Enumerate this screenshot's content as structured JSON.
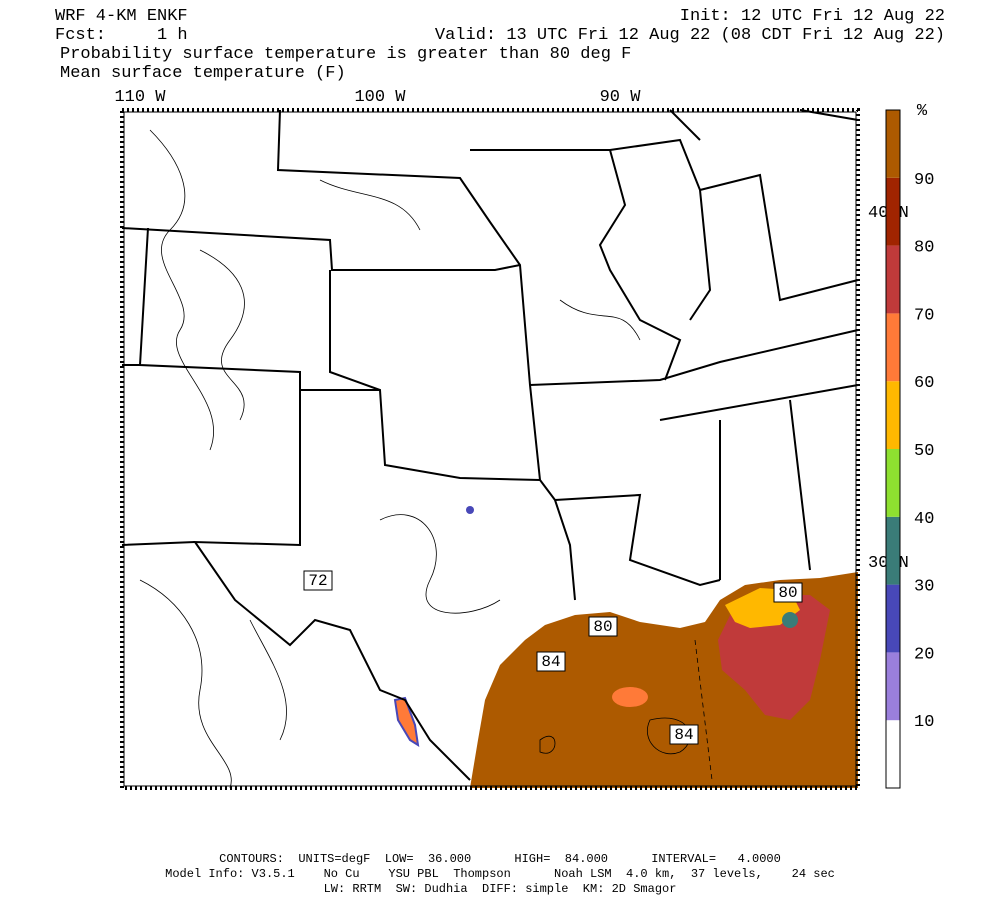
{
  "header": {
    "title": "WRF 4-KM ENKF",
    "init": "Init: 12 UTC Fri 12 Aug 22",
    "forecast": "Fcst:     1 h",
    "valid": "Valid: 13 UTC Fri 12 Aug 22 (08 CDT Fri 12 Aug 22)",
    "field": "Probability surface temperature is greater than 80 deg F",
    "contour_field": "Mean surface temperature (F)"
  },
  "map": {
    "longitude_labels": [
      "110 W",
      "100 W",
      "90 W"
    ],
    "latitude_labels": [
      "40 N",
      "30 N"
    ],
    "contour_labels": [
      "72",
      "80",
      "80",
      "84",
      "84"
    ]
  },
  "colorbar": {
    "unit": "%",
    "levels": [
      10,
      20,
      30,
      40,
      50,
      60,
      70,
      80,
      90
    ],
    "colors": [
      "#ffffff",
      "#9a7fdc",
      "#4848b8",
      "#3a7c78",
      "#8ee030",
      "#ffb800",
      "#ff7a38",
      "#c03a3a",
      "#a02400",
      "#ad5a00"
    ]
  },
  "footer": {
    "contours": "CONTOURS:  UNITS=degF  LOW=  36.000      HIGH=  84.000      INTERVAL=   4.0000",
    "model_info": "Model Info: V3.5.1    No Cu    YSU PBL  Thompson      Noah LSM  4.0 km,  37 levels,    24 sec",
    "physics": "LW: RRTM  SW: Dudhia  DIFF: simple  KM: 2D Smagor"
  }
}
